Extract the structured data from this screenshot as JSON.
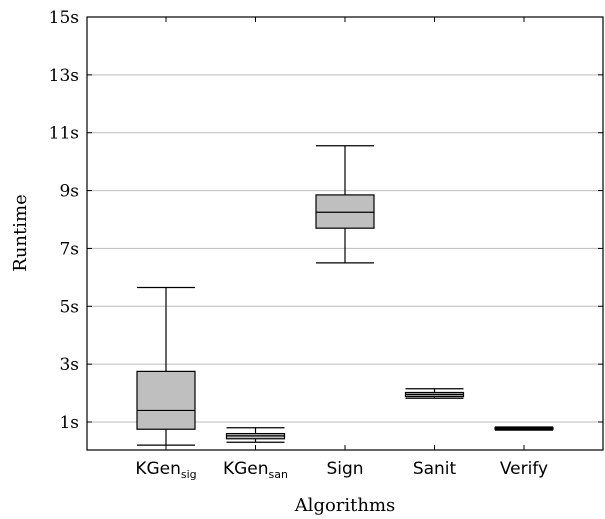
{
  "chart_data": {
    "type": "boxplot",
    "xlabel": "Algorithms",
    "ylabel": "Runtime",
    "ylim": [
      0.1,
      15
    ],
    "grid": "horizontal",
    "yticks": [
      1,
      3,
      5,
      7,
      9,
      11,
      13,
      15
    ],
    "ytick_labels": [
      "1s",
      "3s",
      "5s",
      "7s",
      "9s",
      "11s",
      "13s",
      "15s"
    ],
    "categories": [
      {
        "base": "KGen",
        "sub": "sig"
      },
      {
        "base": "KGen",
        "sub": "san"
      },
      {
        "base": "Sign",
        "sub": ""
      },
      {
        "base": "Sanit",
        "sub": ""
      },
      {
        "base": "Verify",
        "sub": ""
      }
    ],
    "boxes": [
      {
        "min": 0.2,
        "q1": 0.75,
        "median": 1.4,
        "q3": 2.75,
        "max": 5.65
      },
      {
        "min": 0.3,
        "q1": 0.42,
        "median": 0.52,
        "q3": 0.6,
        "max": 0.8
      },
      {
        "min": 6.5,
        "q1": 7.7,
        "median": 8.25,
        "q3": 8.85,
        "max": 10.55
      },
      {
        "min": 1.82,
        "q1": 1.88,
        "median": 1.95,
        "q3": 2.02,
        "max": 2.15
      },
      {
        "min": 0.72,
        "q1": 0.75,
        "median": 0.77,
        "q3": 0.8,
        "max": 0.83
      }
    ],
    "colors": {
      "box_fill": "#bfbfbf",
      "grid": "#bdbdbd"
    }
  }
}
